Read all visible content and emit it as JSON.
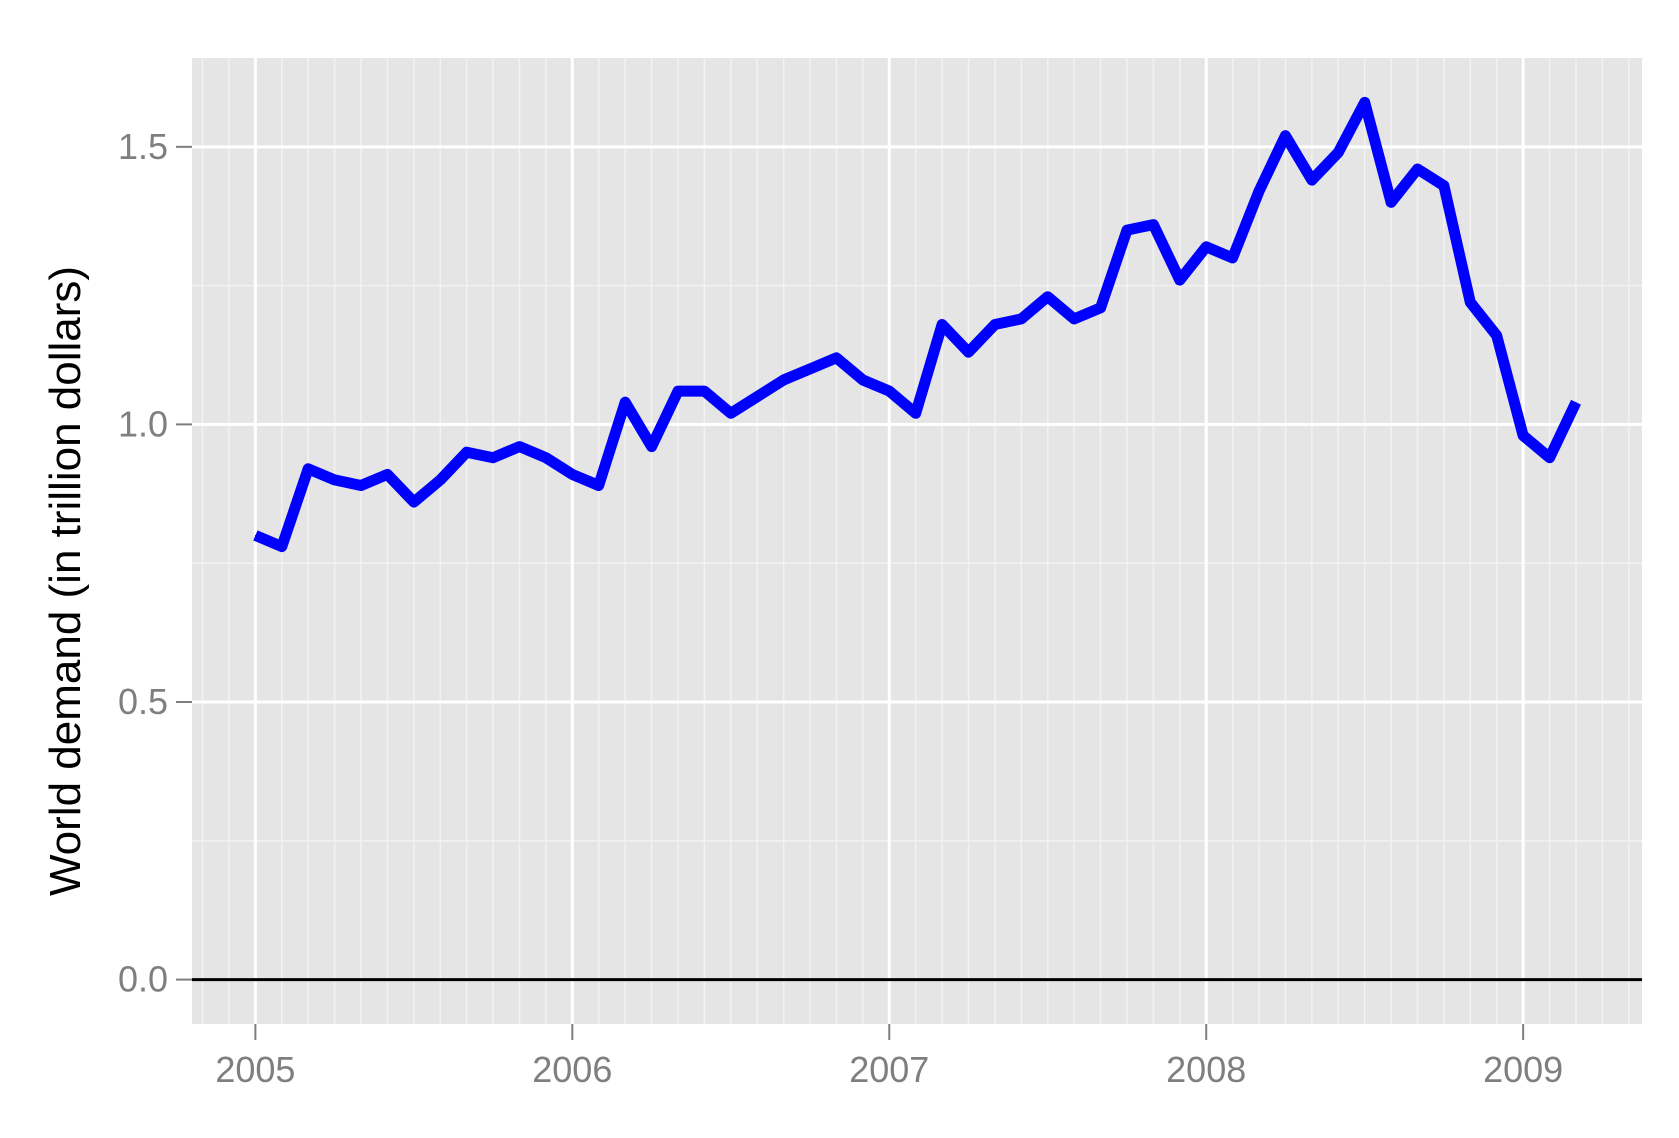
{
  "chart_data": {
    "type": "line",
    "title": "",
    "xlabel": "",
    "ylabel": "World demand (in trillion dollars)",
    "xlim": [
      2004.8,
      2009.375
    ],
    "ylim": [
      -0.08,
      1.66
    ],
    "x_ticks": [
      {
        "value": 2005,
        "label": "2005"
      },
      {
        "value": 2006,
        "label": "2006"
      },
      {
        "value": 2007,
        "label": "2007"
      },
      {
        "value": 2008,
        "label": "2008"
      },
      {
        "value": 2009,
        "label": "2009"
      }
    ],
    "y_ticks": [
      {
        "value": 0.0,
        "label": "0.0"
      },
      {
        "value": 0.5,
        "label": "0.5"
      },
      {
        "value": 1.0,
        "label": "1.0"
      },
      {
        "value": 1.5,
        "label": "1.5"
      }
    ],
    "y_minor_ticks": [
      0.25,
      0.75,
      1.25
    ],
    "reference_line_y": 0,
    "grid": true,
    "legend": "none",
    "colors": {
      "panel_background": "#e5e5e5",
      "grid_major": "#ffffff",
      "grid_minor": "#f2f2f2",
      "line": "#0000ff",
      "reference_line": "#000000",
      "tick_label": "#7f7f7f"
    },
    "series": [
      {
        "x": [
          "2005-01",
          "2005-02",
          "2005-03",
          "2005-04",
          "2005-05",
          "2005-06",
          "2005-07",
          "2005-08",
          "2005-09",
          "2005-10",
          "2005-11",
          "2005-12",
          "2006-01",
          "2006-02",
          "2006-03",
          "2006-04",
          "2006-05",
          "2006-06",
          "2006-07",
          "2006-08",
          "2006-09",
          "2006-10",
          "2006-11",
          "2006-12",
          "2007-01",
          "2007-02",
          "2007-03",
          "2007-04",
          "2007-05",
          "2007-06",
          "2007-07",
          "2007-08",
          "2007-09",
          "2007-10",
          "2007-11",
          "2007-12",
          "2008-01",
          "2008-02",
          "2008-03",
          "2008-04",
          "2008-05",
          "2008-06",
          "2008-07",
          "2008-08",
          "2008-09",
          "2008-10",
          "2008-11",
          "2008-12",
          "2009-01",
          "2009-02",
          "2009-03"
        ],
        "values": [
          0.8,
          0.78,
          0.92,
          0.9,
          0.89,
          0.91,
          0.86,
          0.9,
          0.95,
          0.94,
          0.96,
          0.94,
          0.91,
          0.89,
          1.04,
          0.96,
          1.06,
          1.06,
          1.02,
          1.05,
          1.08,
          1.1,
          1.12,
          1.08,
          1.06,
          1.02,
          1.18,
          1.13,
          1.18,
          1.19,
          1.23,
          1.19,
          1.21,
          1.35,
          1.36,
          1.26,
          1.32,
          1.3,
          1.42,
          1.52,
          1.44,
          1.49,
          1.58,
          1.4,
          1.46,
          1.43,
          1.22,
          1.16,
          0.98,
          0.94,
          1.04
        ]
      }
    ]
  }
}
